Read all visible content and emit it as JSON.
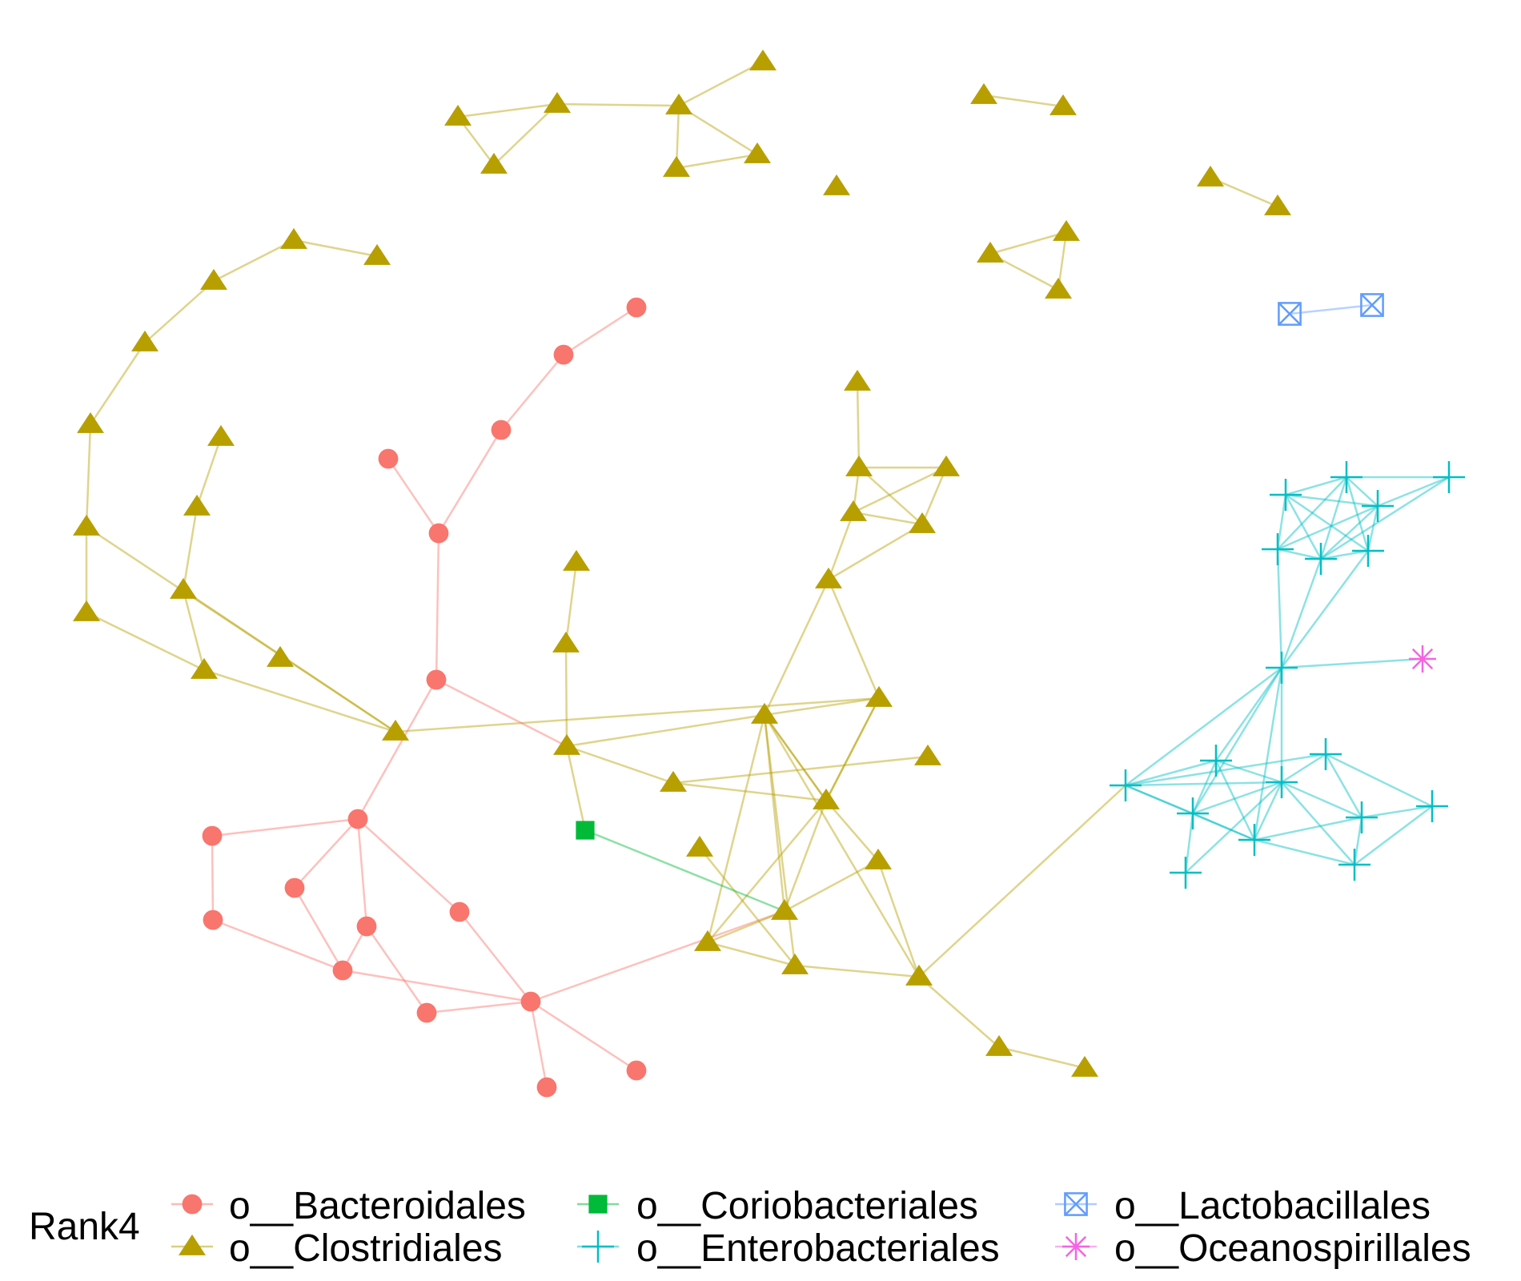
{
  "legend": {
    "title": "Rank4",
    "entries": [
      {
        "key": "bacteroidales",
        "label": "o__Bacteroidales",
        "shape": "circle",
        "color": "#F8766D"
      },
      {
        "key": "clostridiales",
        "label": "o__Clostridiales",
        "shape": "triangle",
        "color": "#B79F00"
      },
      {
        "key": "coriobacteriales",
        "label": "o__Coriobacteriales",
        "shape": "square",
        "color": "#00BA38"
      },
      {
        "key": "enterobacteriales",
        "label": "o__Enterobacteriales",
        "shape": "plus",
        "color": "#00BFC4"
      },
      {
        "key": "lactobacillales",
        "label": "o__Lactobacillales",
        "shape": "boxcross",
        "color": "#619CFF"
      },
      {
        "key": "oceanospirillales",
        "label": "o__Oceanospirillales",
        "shape": "asterisk",
        "color": "#F564E3"
      }
    ]
  },
  "network": {
    "node_count": 92,
    "edge_count": 123
  }
}
